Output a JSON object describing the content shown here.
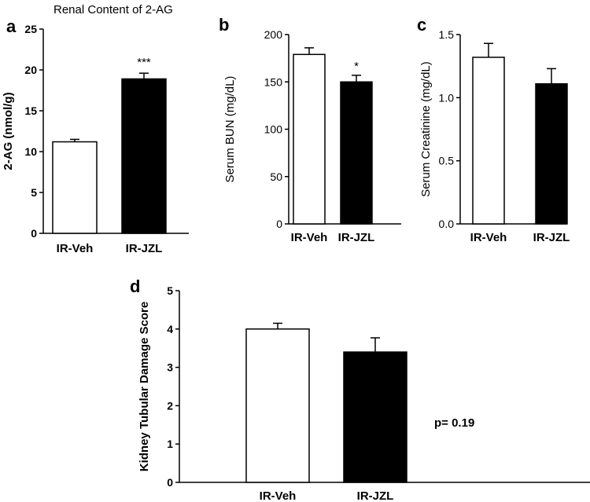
{
  "chart_data": [
    {
      "panel": "a",
      "type": "bar",
      "title": "Renal Content of 2-AG",
      "ylabel": "2-AG (nmol/g)",
      "categories": [
        "IR-Veh",
        "IR-JZL"
      ],
      "values": [
        11.2,
        18.9
      ],
      "errors": [
        0.3,
        0.7
      ],
      "colors": [
        "#ffffff",
        "#000000"
      ],
      "ylim": [
        0,
        25
      ],
      "yticks": [
        "0",
        "5",
        "10",
        "15",
        "20",
        "25"
      ],
      "annotations": [
        "",
        "***"
      ]
    },
    {
      "panel": "b",
      "type": "bar",
      "title": "",
      "ylabel": "Serum BUN (mg/dL)",
      "categories": [
        "IR-Veh",
        "IR-JZL"
      ],
      "values": [
        179,
        150
      ],
      "errors": [
        7,
        7
      ],
      "colors": [
        "#ffffff",
        "#000000"
      ],
      "ylim": [
        0,
        200
      ],
      "yticks": [
        "0",
        "50",
        "100",
        "150",
        "200"
      ],
      "annotations": [
        "",
        "*"
      ]
    },
    {
      "panel": "c",
      "type": "bar",
      "title": "",
      "ylabel": "Serum Creatinine (mg/dL)",
      "categories": [
        "IR-Veh",
        "IR-JZL"
      ],
      "values": [
        1.32,
        1.11
      ],
      "errors": [
        0.11,
        0.12
      ],
      "colors": [
        "#ffffff",
        "#000000"
      ],
      "ylim": [
        0,
        1.5
      ],
      "yticks": [
        "0.0",
        "0.5",
        "1.0",
        "1.5"
      ],
      "annotations": [
        "",
        ""
      ]
    },
    {
      "panel": "d",
      "type": "bar",
      "title": "",
      "ylabel": "Kidney Tubular Damage Score",
      "categories": [
        "IR-Veh",
        "IR-JZL"
      ],
      "values": [
        4.0,
        3.4
      ],
      "errors": [
        0.15,
        0.37
      ],
      "colors": [
        "#ffffff",
        "#000000"
      ],
      "ylim": [
        0,
        5
      ],
      "yticks": [
        "0",
        "1",
        "2",
        "3",
        "4",
        "5"
      ],
      "annotations": [
        "",
        ""
      ],
      "note": "p= 0.19"
    }
  ]
}
